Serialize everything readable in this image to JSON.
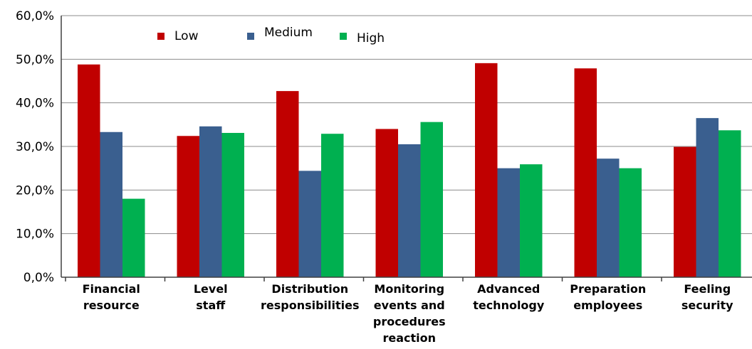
{
  "chart_data": {
    "type": "bar",
    "title": "",
    "xlabel": "",
    "ylabel": "",
    "categories": [
      [
        "Financial",
        "resource"
      ],
      [
        "Level",
        "staff"
      ],
      [
        "Distribution",
        "responsibilities"
      ],
      [
        "Monitoring",
        "events and",
        "procedures",
        "reaction"
      ],
      [
        "Advanced",
        "technology"
      ],
      [
        "Preparation",
        "employees"
      ],
      [
        "Feeling",
        "security"
      ]
    ],
    "series": [
      {
        "name": "Low",
        "color": "#c00000",
        "values": [
          48.8,
          32.4,
          42.7,
          34.0,
          49.1,
          47.9,
          29.9
        ]
      },
      {
        "name": "Medium",
        "color": "#3a5f8f",
        "values": [
          33.3,
          34.6,
          24.4,
          30.5,
          25.0,
          27.2,
          36.5
        ]
      },
      {
        "name": "High",
        "color": "#00b050",
        "values": [
          18.0,
          33.1,
          32.9,
          35.6,
          25.9,
          25.0,
          33.7
        ]
      }
    ],
    "ylim": [
      0,
      60
    ],
    "yticks": [
      0,
      10,
      20,
      30,
      40,
      50,
      60
    ],
    "ytick_labels": [
      "0,0%",
      "10,0%",
      "20,0%",
      "30,0%",
      "40,0%",
      "50,0%",
      "60,0%"
    ],
    "grid": true,
    "legend_position": "top-left"
  }
}
